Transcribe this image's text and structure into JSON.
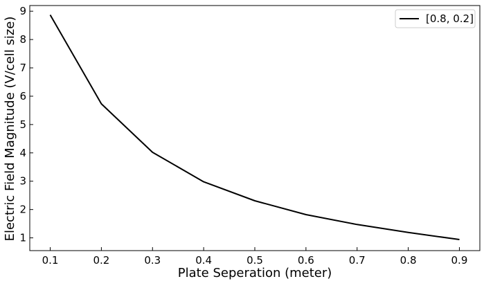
{
  "chart_data": {
    "type": "line",
    "title": "",
    "xlabel": "Plate Seperation (meter)",
    "ylabel": "Electric Field Magnitude (V/cell size)",
    "xlim": [
      0.06,
      0.94
    ],
    "ylim": [
      0.55,
      9.2
    ],
    "xticks": [
      0.1,
      0.2,
      0.3,
      0.4,
      0.5,
      0.6,
      0.7,
      0.8,
      0.9
    ],
    "xtick_labels": [
      "0.1",
      "0.2",
      "0.3",
      "0.4",
      "0.5",
      "0.6",
      "0.7",
      "0.8",
      "0.9"
    ],
    "yticks": [
      1,
      2,
      3,
      4,
      5,
      6,
      7,
      8,
      9
    ],
    "ytick_labels": [
      "1",
      "2",
      "3",
      "4",
      "5",
      "6",
      "7",
      "8",
      "9"
    ],
    "grid": false,
    "legend_position": "top-right",
    "series": [
      {
        "name": "[0.8, 0.2]",
        "color": "#000000",
        "x": [
          0.1,
          0.2,
          0.3,
          0.4,
          0.5,
          0.6,
          0.7,
          0.8,
          0.9
        ],
        "y": [
          8.87,
          5.73,
          4.02,
          2.98,
          2.31,
          1.82,
          1.47,
          1.19,
          0.94
        ]
      }
    ]
  }
}
